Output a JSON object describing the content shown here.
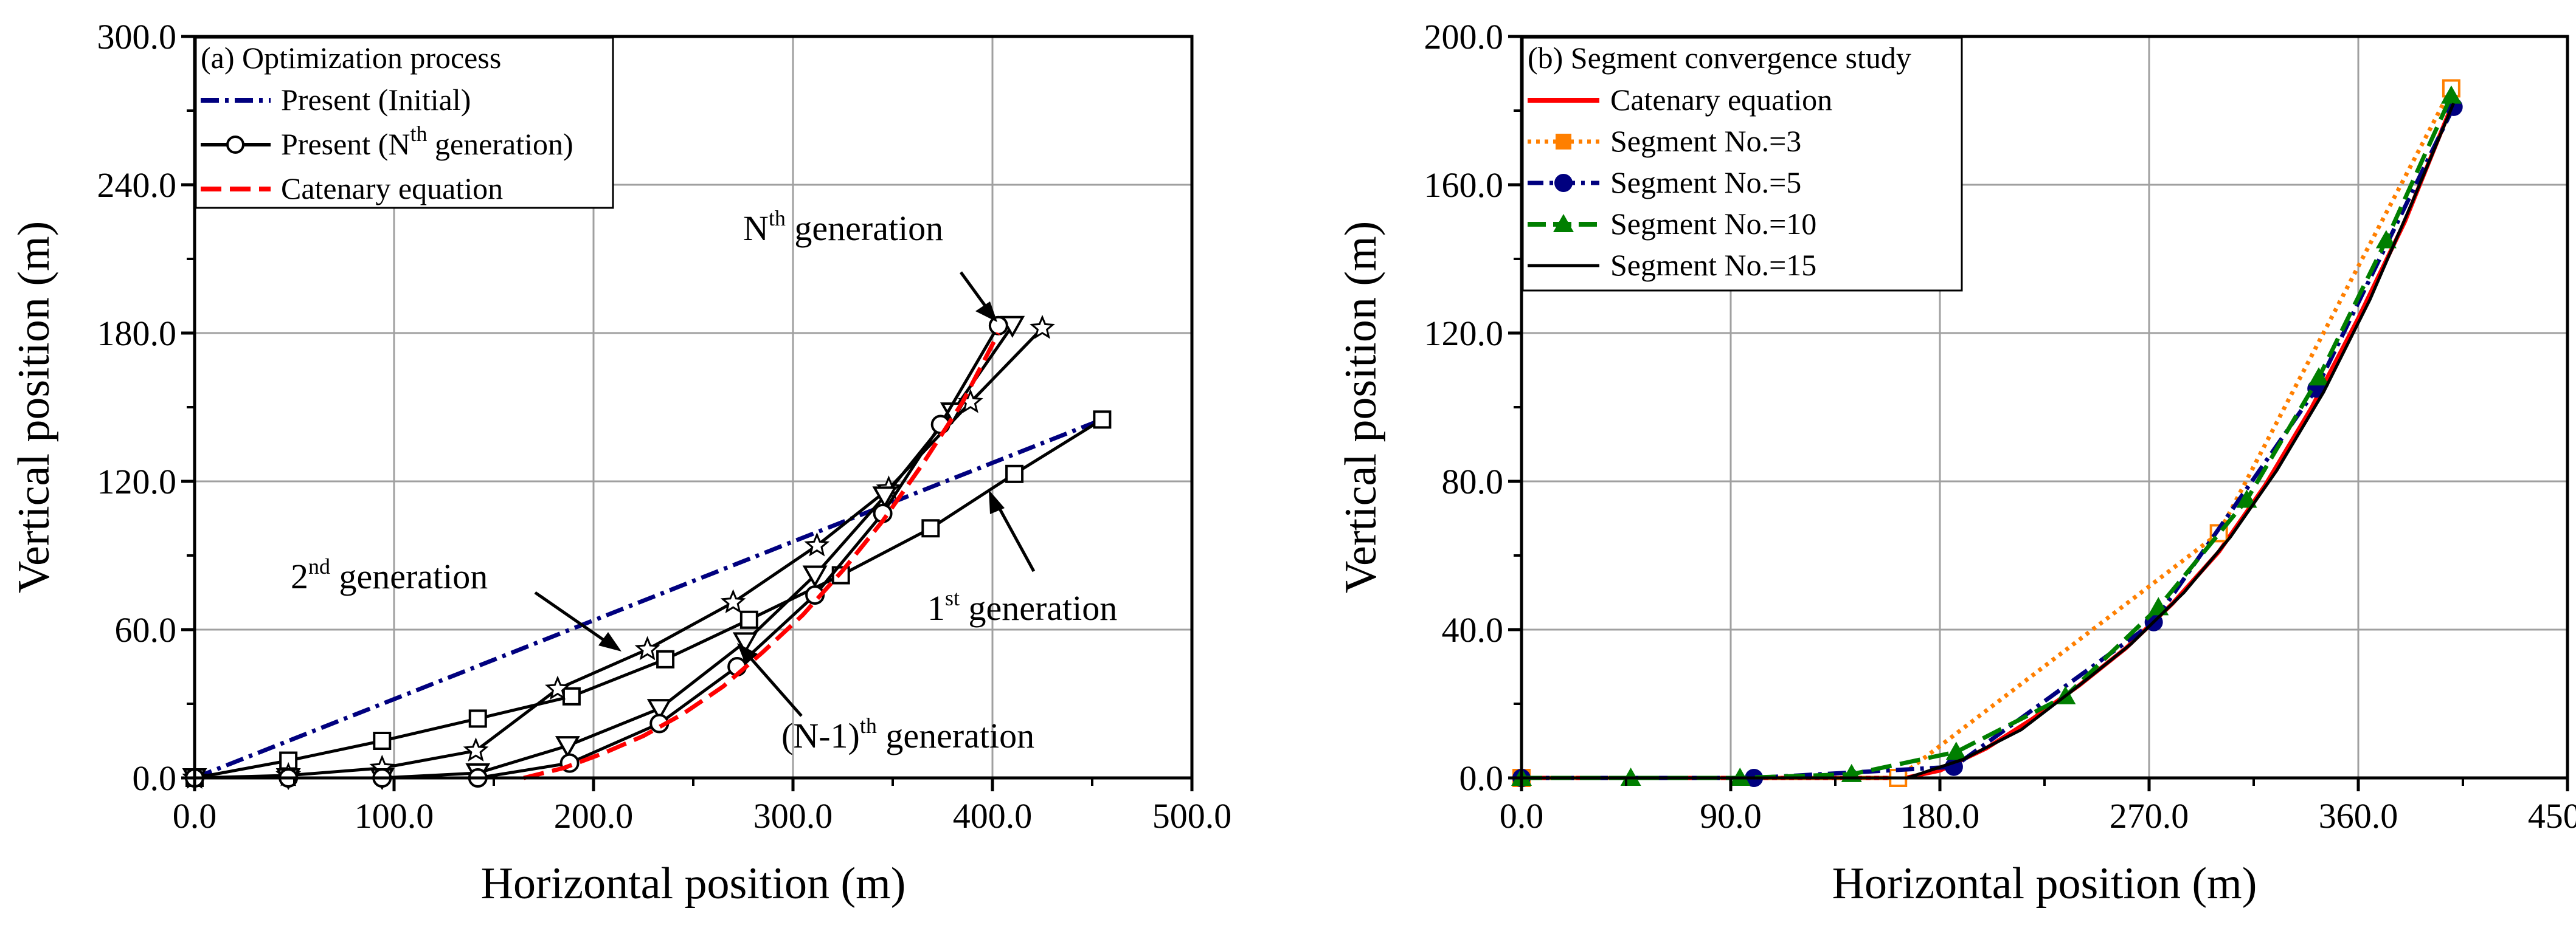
{
  "chart_data": [
    {
      "id": "a",
      "type": "line",
      "title": "(a) Optimization process",
      "xlabel": "Horizontal position (m)",
      "ylabel": "Vertical position (m)",
      "xlim": [
        0,
        500
      ],
      "ylim": [
        0,
        300
      ],
      "xticks": [
        0,
        100,
        200,
        300,
        400,
        500
      ],
      "yticks": [
        0,
        60,
        120,
        180,
        240,
        300
      ],
      "xtick_labels": [
        "0.0",
        "100.0",
        "200.0",
        "300.0",
        "400.0",
        "500.0"
      ],
      "ytick_labels": [
        "0.0",
        "60.0",
        "120.0",
        "180.0",
        "240.0",
        "300.0"
      ],
      "grid": true,
      "legend_position": "top-left",
      "legend": [
        {
          "key": "initial",
          "text": "Present (Initial)"
        },
        {
          "key": "nth",
          "text": "Present (N",
          "sup": "th",
          "tail": " generation)"
        },
        {
          "key": "catenary",
          "text": "Catenary equation"
        }
      ],
      "series": [
        {
          "name": "Present (Initial)",
          "color": "#00007f",
          "style": "dashdot",
          "marker": "none",
          "points": [
            [
              0,
              0
            ],
            [
              455,
              145
            ]
          ]
        },
        {
          "name": "1st generation",
          "color": "#000000",
          "style": "solid",
          "marker": "square",
          "points": [
            [
              0,
              0
            ],
            [
              47,
              7
            ],
            [
              94,
              15
            ],
            [
              142,
              24
            ],
            [
              189,
              33
            ],
            [
              236,
              48
            ],
            [
              278,
              64
            ],
            [
              324,
              82
            ],
            [
              369,
              101
            ],
            [
              411,
              123
            ],
            [
              455,
              145
            ]
          ]
        },
        {
          "name": "2nd generation",
          "color": "#000000",
          "style": "solid",
          "marker": "star",
          "points": [
            [
              0,
              0
            ],
            [
              47,
              1
            ],
            [
              94,
              4
            ],
            [
              141,
              11
            ],
            [
              182,
              36
            ],
            [
              227,
              52
            ],
            [
              270,
              71
            ],
            [
              312,
              94
            ],
            [
              348,
              117
            ],
            [
              389,
              152
            ],
            [
              425,
              182
            ]
          ]
        },
        {
          "name": "(N-1)th generation",
          "color": "#000000",
          "style": "solid",
          "marker": "triangle-down",
          "points": [
            [
              0,
              0
            ],
            [
              47,
              0
            ],
            [
              94,
              0
            ],
            [
              142,
              2
            ],
            [
              187,
              13
            ],
            [
              233,
              28
            ],
            [
              276,
              55
            ],
            [
              311,
              82
            ],
            [
              346,
              114
            ],
            [
              380,
              148
            ],
            [
              410,
              183
            ]
          ]
        },
        {
          "name": "Present (Nth generation)",
          "color": "#000000",
          "style": "solid",
          "marker": "circle",
          "points": [
            [
              0,
              0
            ],
            [
              47,
              0
            ],
            [
              94,
              0
            ],
            [
              142,
              0
            ],
            [
              188,
              6
            ],
            [
              233,
              22
            ],
            [
              272,
              45
            ],
            [
              311,
              74
            ],
            [
              345,
              107
            ],
            [
              374,
              143
            ],
            [
              403,
              183
            ]
          ]
        },
        {
          "name": "Catenary equation",
          "color": "#ff0000",
          "style": "dashed",
          "marker": "none",
          "points": [
            [
              165,
              0
            ],
            [
              185,
              4
            ],
            [
              205,
              10
            ],
            [
              225,
              17
            ],
            [
              245,
              26
            ],
            [
              265,
              37
            ],
            [
              285,
              51
            ],
            [
              305,
              66
            ],
            [
              325,
              84
            ],
            [
              345,
              104
            ],
            [
              365,
              127
            ],
            [
              385,
              152
            ],
            [
              403,
              180
            ]
          ]
        }
      ],
      "annotations": [
        {
          "text": "N",
          "sup": "th",
          "tail": " generation"
        },
        {
          "text": "2",
          "sup": "nd",
          "tail": " generation"
        },
        {
          "text": "1",
          "sup": "st",
          "tail": " generation"
        },
        {
          "text": "(N-1)",
          "sup": "th",
          "tail": " generation"
        }
      ]
    },
    {
      "id": "b",
      "type": "line",
      "title": "(b) Segment convergence study",
      "xlabel": "Horizontal position (m)",
      "ylabel": "Vertical position (m)",
      "xlim": [
        0,
        450
      ],
      "ylim": [
        0,
        200
      ],
      "xticks": [
        0,
        90,
        180,
        270,
        360,
        450
      ],
      "yticks": [
        0,
        40,
        80,
        120,
        160,
        200
      ],
      "xtick_labels": [
        "0.0",
        "90.0",
        "180.0",
        "270.0",
        "360.0",
        "450.0"
      ],
      "ytick_labels": [
        "0.0",
        "40.0",
        "80.0",
        "120.0",
        "160.0",
        "200.0"
      ],
      "grid": true,
      "legend_position": "top-left",
      "legend": [
        {
          "key": "cat",
          "text": "Catenary equation"
        },
        {
          "key": "s3",
          "text": "Segment No.=3"
        },
        {
          "key": "s5",
          "text": "Segment No.=5"
        },
        {
          "key": "s10",
          "text": "Segment No.=10"
        },
        {
          "key": "s15",
          "text": "Segment No.=15"
        }
      ],
      "series": [
        {
          "name": "Catenary equation",
          "color": "#ff0000",
          "style": "solid",
          "marker": "none",
          "points": [
            [
              0,
              0
            ],
            [
              165,
              0
            ],
            [
              180,
              2
            ],
            [
              200,
              8
            ],
            [
              220,
              16
            ],
            [
              240,
              25
            ],
            [
              260,
              35
            ],
            [
              280,
              47
            ],
            [
              300,
              61
            ],
            [
              320,
              79
            ],
            [
              340,
              100
            ],
            [
              360,
              124
            ],
            [
              380,
              150
            ],
            [
              400,
              181
            ]
          ]
        },
        {
          "name": "Segment No.=3",
          "color": "#ff7f00",
          "style": "dotted",
          "marker": "square",
          "points": [
            [
              0,
              0
            ],
            [
              162,
              0
            ],
            [
              300,
              66
            ],
            [
              400,
              186
            ]
          ]
        },
        {
          "name": "Segment No.=5",
          "color": "#00007f",
          "style": "dashdot",
          "marker": "circle",
          "points": [
            [
              0,
              0
            ],
            [
              100,
              0
            ],
            [
              186,
              3
            ],
            [
              272,
              42
            ],
            [
              342,
              105
            ],
            [
              401,
              181
            ]
          ]
        },
        {
          "name": "Segment No.=10",
          "color": "#007f00",
          "style": "dashed",
          "marker": "triangle-up",
          "points": [
            [
              0,
              0
            ],
            [
              47,
              0
            ],
            [
              94,
              0
            ],
            [
              142,
              1
            ],
            [
              187,
              7
            ],
            [
              234,
              22
            ],
            [
              274,
              46
            ],
            [
              312,
              75
            ],
            [
              343,
              108
            ],
            [
              372,
              145
            ],
            [
              400,
              184
            ]
          ]
        },
        {
          "name": "Segment No.=15",
          "color": "#000000",
          "style": "solid",
          "marker": "none",
          "points": [
            [
              0,
              0
            ],
            [
              166,
              0
            ],
            [
              190,
              5
            ],
            [
              215,
              13
            ],
            [
              240,
              25
            ],
            [
              262,
              36
            ],
            [
              285,
              50
            ],
            [
              305,
              65
            ],
            [
              325,
              83
            ],
            [
              345,
              104
            ],
            [
              365,
              129
            ],
            [
              383,
              155
            ],
            [
              401,
              182
            ]
          ]
        }
      ]
    }
  ]
}
